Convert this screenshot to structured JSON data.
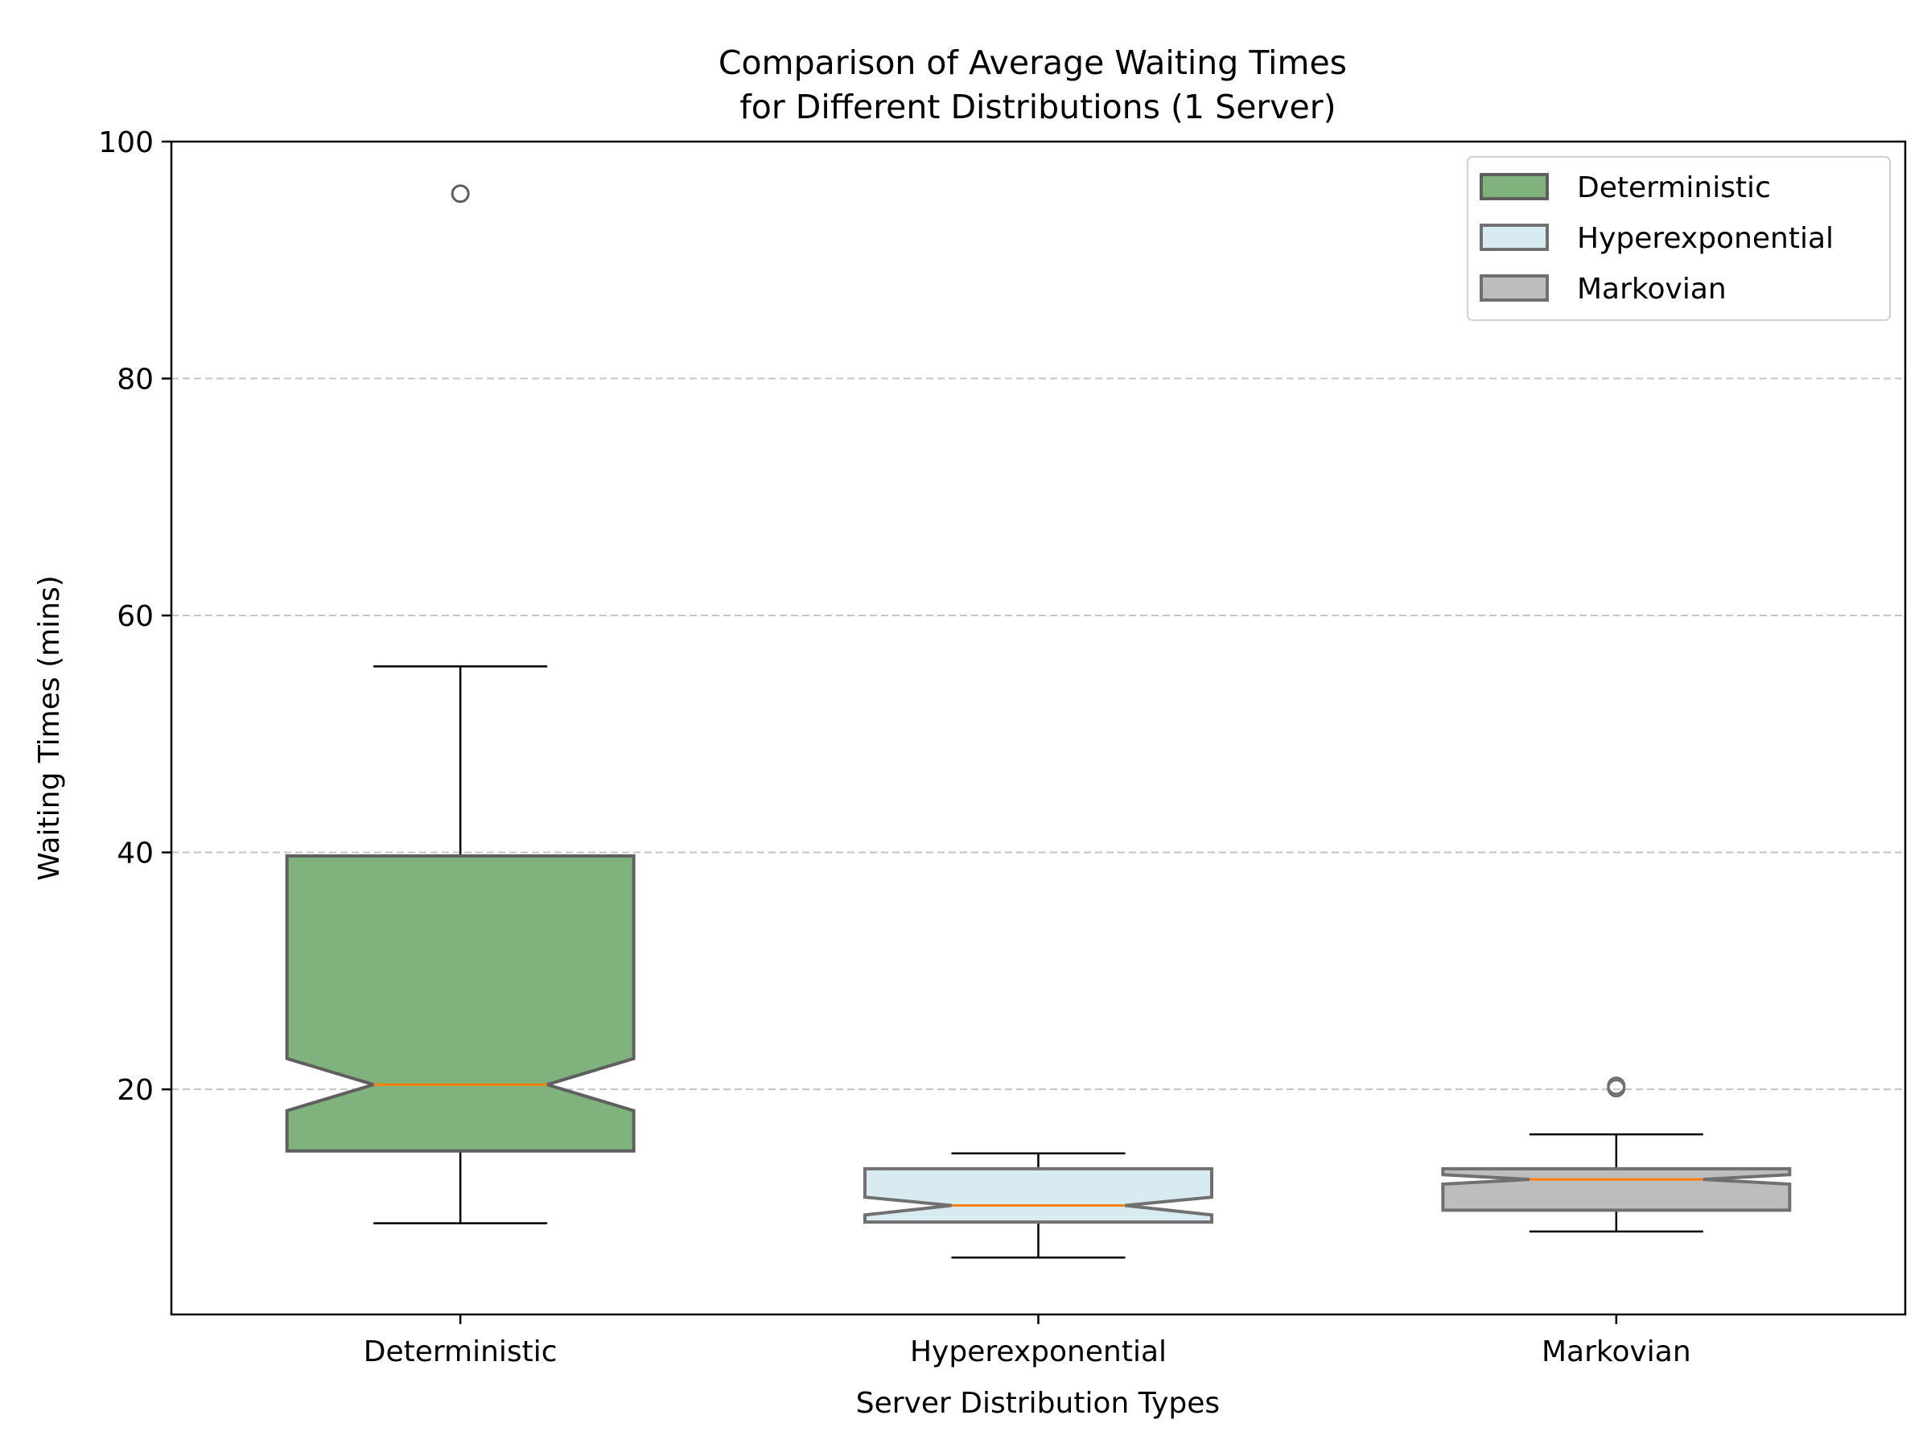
{
  "chart_data": {
    "type": "box",
    "title": "Comparison of Average Waiting Times\nfor Different Distributions (1 Server)",
    "xlabel": "Server Distribution Types",
    "ylabel": "Waiting Times (mins)",
    "ylim": [
      1,
      100
    ],
    "yticks": [
      20,
      40,
      60,
      80,
      100
    ],
    "grid": "y-dashed",
    "legend_position": "top-right",
    "notched": true,
    "categories": [
      "Deterministic",
      "Hyperexponential",
      "Markovian"
    ],
    "series": [
      {
        "name": "Deterministic",
        "color": "#7fb27c",
        "edge_color": "#5f5f5f",
        "whisker_low": 8.7,
        "q1": 14.8,
        "median": 20.4,
        "q3": 39.7,
        "whisker_high": 55.7,
        "notch_low": 18.2,
        "notch_high": 22.6,
        "outliers": [
          95.6
        ]
      },
      {
        "name": "Hyperexponential",
        "color": "#d8ebf1",
        "edge_color": "#707070",
        "whisker_low": 5.8,
        "q1": 8.8,
        "median": 10.2,
        "q3": 13.3,
        "whisker_high": 14.6,
        "notch_low": 9.4,
        "notch_high": 10.9,
        "outliers": []
      },
      {
        "name": "Markovian",
        "color": "#bdbdbd",
        "edge_color": "#707070",
        "whisker_low": 8.0,
        "q1": 9.8,
        "median": 12.4,
        "q3": 13.3,
        "whisker_high": 16.2,
        "notch_low": 12.0,
        "notch_high": 12.8,
        "outliers": [
          20.1,
          20.3
        ]
      }
    ],
    "median_color": "#ff7f0e"
  }
}
